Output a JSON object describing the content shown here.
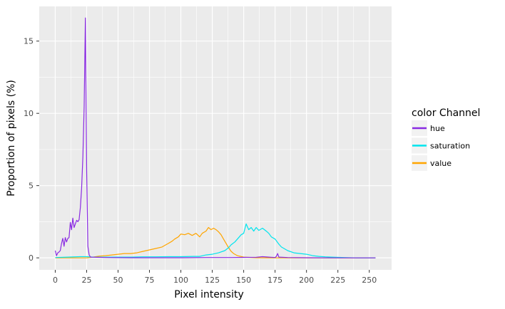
{
  "chart_data": {
    "type": "line",
    "title": "",
    "xlabel": "Pixel intensity",
    "ylabel": "Proportion of pixels (%)",
    "xlim": [
      -12.75,
      267.75
    ],
    "ylim": [
      -0.83,
      17.4
    ],
    "x_ticks": [
      0,
      25,
      50,
      75,
      100,
      125,
      150,
      175,
      200,
      225,
      250
    ],
    "y_ticks": [
      0,
      5,
      10,
      15
    ],
    "grid": true,
    "legend": {
      "title": "color Channel",
      "position": "right",
      "entries": [
        "hue",
        "saturation",
        "value"
      ]
    },
    "series": [
      {
        "name": "hue",
        "color": "#8a2be2",
        "points": [
          [
            0,
            0.5
          ],
          [
            1,
            0.15
          ],
          [
            2,
            0.35
          ],
          [
            3,
            0.4
          ],
          [
            4,
            0.5
          ],
          [
            5,
            1.0
          ],
          [
            6,
            1.35
          ],
          [
            7,
            0.8
          ],
          [
            8,
            1.4
          ],
          [
            9,
            1.1
          ],
          [
            10,
            1.35
          ],
          [
            11,
            1.4
          ],
          [
            12,
            2.45
          ],
          [
            13,
            1.95
          ],
          [
            14,
            2.75
          ],
          [
            15,
            2.1
          ],
          [
            16,
            2.35
          ],
          [
            17,
            2.6
          ],
          [
            18,
            2.5
          ],
          [
            19,
            2.65
          ],
          [
            20,
            3.5
          ],
          [
            21,
            4.8
          ],
          [
            22,
            7.0
          ],
          [
            23,
            10.5
          ],
          [
            24,
            16.6
          ],
          [
            25,
            6.0
          ],
          [
            26,
            0.8
          ],
          [
            27,
            0.2
          ],
          [
            28,
            0.05
          ],
          [
            40,
            0.02
          ],
          [
            60,
            0.01
          ],
          [
            80,
            0.01
          ],
          [
            100,
            0.01
          ],
          [
            120,
            0.02
          ],
          [
            140,
            0.02
          ],
          [
            150,
            0.03
          ],
          [
            160,
            0.04
          ],
          [
            165,
            0.08
          ],
          [
            170,
            0.05
          ],
          [
            175,
            0.02
          ],
          [
            176,
            0.1
          ],
          [
            177,
            0.3
          ],
          [
            178,
            0.05
          ],
          [
            185,
            0.02
          ],
          [
            200,
            0.01
          ],
          [
            225,
            0.0
          ],
          [
            255,
            0.0
          ]
        ]
      },
      {
        "name": "saturation",
        "color": "#00e5ee",
        "points": [
          [
            0,
            0.02
          ],
          [
            10,
            0.05
          ],
          [
            20,
            0.08
          ],
          [
            25,
            0.08
          ],
          [
            30,
            0.05
          ],
          [
            40,
            0.05
          ],
          [
            50,
            0.05
          ],
          [
            60,
            0.05
          ],
          [
            70,
            0.07
          ],
          [
            80,
            0.07
          ],
          [
            90,
            0.08
          ],
          [
            100,
            0.08
          ],
          [
            110,
            0.1
          ],
          [
            115,
            0.1
          ],
          [
            120,
            0.2
          ],
          [
            125,
            0.25
          ],
          [
            130,
            0.35
          ],
          [
            135,
            0.5
          ],
          [
            138,
            0.7
          ],
          [
            140,
            0.9
          ],
          [
            143,
            1.1
          ],
          [
            145,
            1.3
          ],
          [
            148,
            1.6
          ],
          [
            150,
            1.7
          ],
          [
            152,
            2.35
          ],
          [
            154,
            1.95
          ],
          [
            156,
            2.1
          ],
          [
            158,
            1.85
          ],
          [
            160,
            2.1
          ],
          [
            162,
            1.9
          ],
          [
            165,
            2.05
          ],
          [
            168,
            1.85
          ],
          [
            170,
            1.7
          ],
          [
            172,
            1.45
          ],
          [
            175,
            1.3
          ],
          [
            178,
            0.95
          ],
          [
            180,
            0.75
          ],
          [
            185,
            0.5
          ],
          [
            190,
            0.35
          ],
          [
            195,
            0.3
          ],
          [
            200,
            0.25
          ],
          [
            205,
            0.15
          ],
          [
            210,
            0.1
          ],
          [
            215,
            0.07
          ],
          [
            220,
            0.05
          ],
          [
            230,
            0.02
          ],
          [
            240,
            0.0
          ],
          [
            255,
            0.0
          ]
        ]
      },
      {
        "name": "value",
        "color": "#ffa500",
        "points": [
          [
            0,
            0.0
          ],
          [
            10,
            0.0
          ],
          [
            20,
            0.0
          ],
          [
            25,
            0.0
          ],
          [
            30,
            0.05
          ],
          [
            35,
            0.12
          ],
          [
            40,
            0.15
          ],
          [
            45,
            0.2
          ],
          [
            50,
            0.25
          ],
          [
            55,
            0.3
          ],
          [
            60,
            0.3
          ],
          [
            65,
            0.35
          ],
          [
            70,
            0.45
          ],
          [
            75,
            0.55
          ],
          [
            80,
            0.65
          ],
          [
            85,
            0.75
          ],
          [
            88,
            0.9
          ],
          [
            90,
            1.0
          ],
          [
            93,
            1.15
          ],
          [
            95,
            1.3
          ],
          [
            98,
            1.45
          ],
          [
            100,
            1.65
          ],
          [
            103,
            1.6
          ],
          [
            106,
            1.7
          ],
          [
            109,
            1.55
          ],
          [
            112,
            1.7
          ],
          [
            115,
            1.45
          ],
          [
            117,
            1.7
          ],
          [
            120,
            1.85
          ],
          [
            122,
            2.1
          ],
          [
            124,
            1.95
          ],
          [
            126,
            2.05
          ],
          [
            128,
            1.95
          ],
          [
            130,
            1.8
          ],
          [
            132,
            1.6
          ],
          [
            134,
            1.3
          ],
          [
            136,
            1.0
          ],
          [
            138,
            0.7
          ],
          [
            140,
            0.45
          ],
          [
            142,
            0.3
          ],
          [
            145,
            0.15
          ],
          [
            150,
            0.05
          ],
          [
            160,
            0.01
          ],
          [
            180,
            0.0
          ],
          [
            200,
            0.0
          ],
          [
            255,
            0.0
          ]
        ]
      }
    ]
  }
}
